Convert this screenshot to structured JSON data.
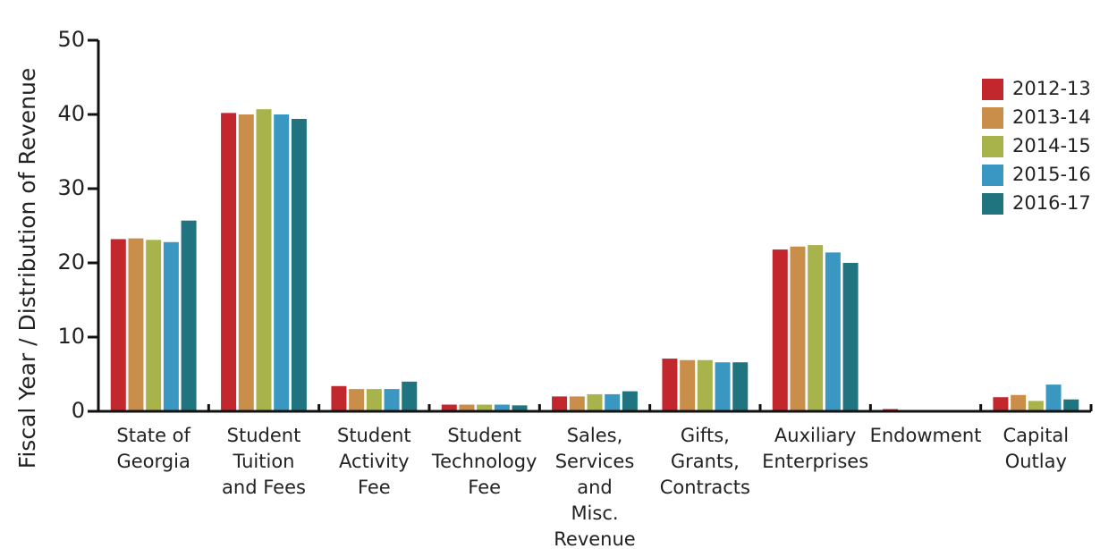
{
  "chart_data": {
    "type": "bar",
    "y_label": "Fiscal Year / Distribution of Revenue",
    "categories": [
      "State of\nGeorgia",
      "Student\nTuition\nand Fees",
      "Student\nActivity\nFee",
      "Student\nTechnology\nFee",
      "Sales,\nServices\nand\nMisc.\nRevenue",
      "Gifts,\nGrants,\nContracts",
      "Auxiliary\nEnterprises",
      "Endowment",
      "Capital\nOutlay"
    ],
    "series": [
      {
        "name": "2012-13",
        "color": "#c1272d",
        "values": [
          23.2,
          40.2,
          3.4,
          0.9,
          2.0,
          7.1,
          21.8,
          0.3,
          1.9
        ]
      },
      {
        "name": "2013-14",
        "color": "#c98f4a",
        "values": [
          23.3,
          40.0,
          3.0,
          0.9,
          2.0,
          6.9,
          22.2,
          0.1,
          2.2
        ]
      },
      {
        "name": "2014-15",
        "color": "#a9b34b",
        "values": [
          23.1,
          40.7,
          3.0,
          0.9,
          2.3,
          6.9,
          22.4,
          0.1,
          1.4
        ]
      },
      {
        "name": "2015-16",
        "color": "#3a97c1",
        "values": [
          22.8,
          40.0,
          3.0,
          0.9,
          2.3,
          6.6,
          21.4,
          0.1,
          3.6
        ]
      },
      {
        "name": "2016-17",
        "color": "#1f7480",
        "values": [
          25.7,
          39.4,
          4.0,
          0.8,
          2.7,
          6.6,
          20.0,
          0.1,
          1.6
        ]
      }
    ],
    "ylim": [
      0,
      50
    ],
    "yticks": [
      0,
      10,
      20,
      30,
      40,
      50
    ],
    "legend": "upper right"
  }
}
